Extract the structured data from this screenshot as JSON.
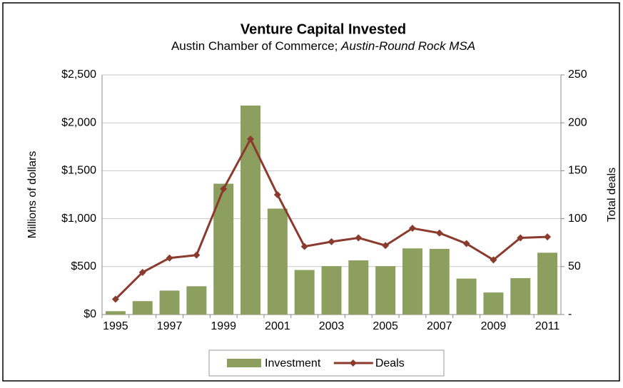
{
  "chart_data": {
    "type": "bar",
    "title": "Venture Capital Invested",
    "subtitle": [
      "Austin Chamber of Commerce; ",
      "Austin-Round Rock MSA"
    ],
    "ylabel": "Millions of dollars",
    "y2label": "Total deals",
    "categories": [
      "1995",
      null,
      "1997",
      null,
      "1999",
      null,
      "2001",
      null,
      "2003",
      null,
      "2005",
      null,
      "2007",
      null,
      "2009",
      null,
      "2011"
    ],
    "series": [
      {
        "name": "Investment",
        "type": "bar",
        "color": "#8c9f5f",
        "values": [
          35,
          140,
          250,
          295,
          1365,
          2180,
          1105,
          465,
          505,
          565,
          505,
          690,
          685,
          375,
          230,
          380,
          645
        ]
      },
      {
        "name": "Deals",
        "type": "line",
        "axis": "y2",
        "color": "#8b3a2e",
        "values": [
          16,
          44,
          59,
          62,
          131,
          183,
          125,
          71,
          76,
          80,
          72,
          90,
          85,
          74,
          57,
          80,
          81
        ]
      }
    ],
    "ylim": [
      0,
      2500
    ],
    "yticks": [
      {
        "value": 0,
        "label": "$0"
      },
      {
        "value": 500,
        "label": "$500"
      },
      {
        "value": 1000,
        "label": "$1,000"
      },
      {
        "value": 1500,
        "label": "$1,500"
      },
      {
        "value": 2000,
        "label": "$2,000"
      },
      {
        "value": 2500,
        "label": "$2,500"
      }
    ],
    "y2lim": [
      0,
      250
    ],
    "y2ticks": [
      {
        "value": 0,
        "label": "-"
      },
      50,
      100,
      150,
      200,
      250
    ],
    "grid": true,
    "legend": "bottom"
  }
}
